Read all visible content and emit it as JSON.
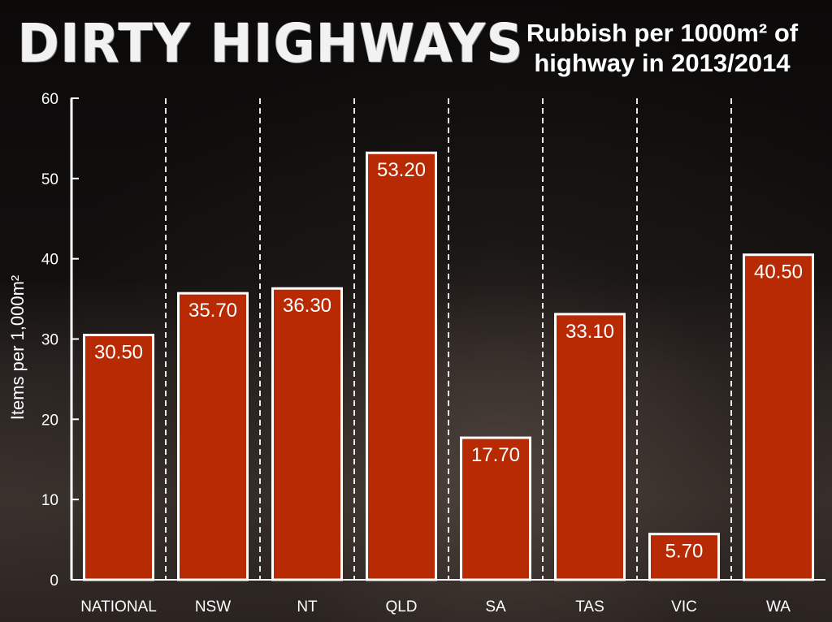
{
  "header": {
    "title": "DIRTY HIGHWAYS",
    "subtitle_line1": "Rubbish per 1000m² of",
    "subtitle_line2": "highway in 2013/2014"
  },
  "colors": {
    "bar_fill": "#b82a03",
    "bar_border": "#ffffff",
    "text": "#ffffff"
  },
  "chart_data": {
    "type": "bar",
    "title": "Rubbish per 1000m² of highway in 2013/2014",
    "xlabel": "",
    "ylabel": "Items per 1,000m²",
    "categories": [
      "NATIONAL",
      "NSW",
      "NT",
      "QLD",
      "SA",
      "TAS",
      "VIC",
      "WA"
    ],
    "values": [
      30.5,
      35.7,
      36.3,
      53.2,
      17.7,
      33.1,
      5.7,
      40.5
    ],
    "value_labels": [
      "30.50",
      "35.70",
      "36.30",
      "53.20",
      "17.70",
      "33.10",
      "5.70",
      "40.50"
    ],
    "ylim": [
      0,
      60
    ],
    "yticks": [
      0,
      10,
      20,
      30,
      40,
      50,
      60
    ],
    "grid": "vertical dashed separators",
    "legend": "none"
  }
}
